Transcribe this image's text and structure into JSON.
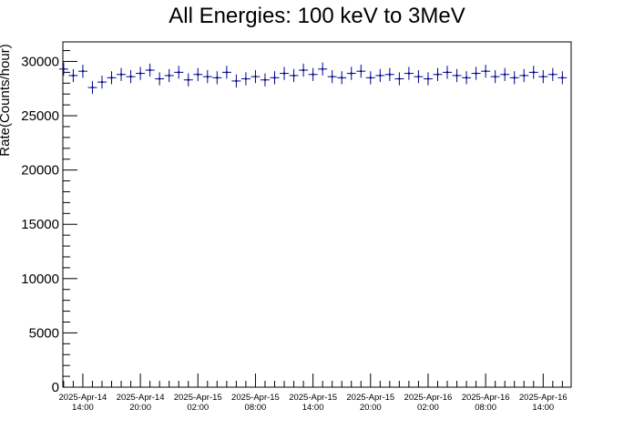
{
  "chart_data": {
    "type": "scatter",
    "title": "All Energies:  100 keV to 3MeV",
    "xlabel": "",
    "ylabel": "Rate(Counts/hour)",
    "ylim": [
      0,
      31800
    ],
    "xlim": [
      "2025-Apr-14 11:55",
      "2025-Apr-16 16:55"
    ],
    "y_ticks": [
      0,
      5000,
      10000,
      15000,
      20000,
      25000,
      30000
    ],
    "y_tick_labels": [
      "0",
      "5000",
      "10000",
      "15000",
      "20000",
      "25000",
      "30000"
    ],
    "x_ticks": [
      {
        "date": "2025-Apr-14",
        "time": "14:00"
      },
      {
        "date": "2025-Apr-14",
        "time": "20:00"
      },
      {
        "date": "2025-Apr-15",
        "time": "02:00"
      },
      {
        "date": "2025-Apr-15",
        "time": "08:00"
      },
      {
        "date": "2025-Apr-15",
        "time": "14:00"
      },
      {
        "date": "2025-Apr-15",
        "time": "20:00"
      },
      {
        "date": "2025-Apr-16",
        "time": "02:00"
      },
      {
        "date": "2025-Apr-16",
        "time": "08:00"
      },
      {
        "date": "2025-Apr-16",
        "time": "14:00"
      }
    ],
    "grid": false,
    "legend": "none",
    "marker_color": "#00008b",
    "series": [
      {
        "x": [
          "2025-Apr-14 12:00",
          "2025-Apr-14 13:00",
          "2025-Apr-14 14:00",
          "2025-Apr-14 15:00",
          "2025-Apr-14 16:00",
          "2025-Apr-14 17:00",
          "2025-Apr-14 18:00",
          "2025-Apr-14 19:00",
          "2025-Apr-14 20:00",
          "2025-Apr-14 21:00",
          "2025-Apr-14 22:00",
          "2025-Apr-14 23:00",
          "2025-Apr-15 00:00",
          "2025-Apr-15 01:00",
          "2025-Apr-15 02:00",
          "2025-Apr-15 03:00",
          "2025-Apr-15 04:00",
          "2025-Apr-15 05:00",
          "2025-Apr-15 06:00",
          "2025-Apr-15 07:00",
          "2025-Apr-15 08:00",
          "2025-Apr-15 09:00",
          "2025-Apr-15 10:00",
          "2025-Apr-15 11:00",
          "2025-Apr-15 12:00",
          "2025-Apr-15 13:00",
          "2025-Apr-15 14:00",
          "2025-Apr-15 15:00",
          "2025-Apr-15 16:00",
          "2025-Apr-15 17:00",
          "2025-Apr-15 18:00",
          "2025-Apr-15 19:00",
          "2025-Apr-15 20:00",
          "2025-Apr-15 21:00",
          "2025-Apr-15 22:00",
          "2025-Apr-15 23:00",
          "2025-Apr-16 00:00",
          "2025-Apr-16 01:00",
          "2025-Apr-16 02:00",
          "2025-Apr-16 03:00",
          "2025-Apr-16 04:00",
          "2025-Apr-16 05:00",
          "2025-Apr-16 06:00",
          "2025-Apr-16 07:00",
          "2025-Apr-16 08:00",
          "2025-Apr-16 09:00",
          "2025-Apr-16 10:00",
          "2025-Apr-16 11:00",
          "2025-Apr-16 12:00",
          "2025-Apr-16 13:00",
          "2025-Apr-16 14:00",
          "2025-Apr-16 15:00",
          "2025-Apr-16 16:00"
        ],
        "y": [
          29300,
          28700,
          29100,
          27600,
          28100,
          28500,
          28800,
          28600,
          28900,
          29200,
          28400,
          28700,
          29000,
          28300,
          28800,
          28600,
          28500,
          29000,
          28200,
          28400,
          28600,
          28300,
          28500,
          28900,
          28700,
          29200,
          28800,
          29300,
          28600,
          28500,
          28900,
          29100,
          28500,
          28700,
          28800,
          28400,
          28900,
          28600,
          28400,
          28800,
          29000,
          28700,
          28500,
          28900,
          29100,
          28600,
          28800,
          28500,
          28700,
          29000,
          28600,
          28800,
          28500
        ],
        "err": 600
      }
    ]
  }
}
